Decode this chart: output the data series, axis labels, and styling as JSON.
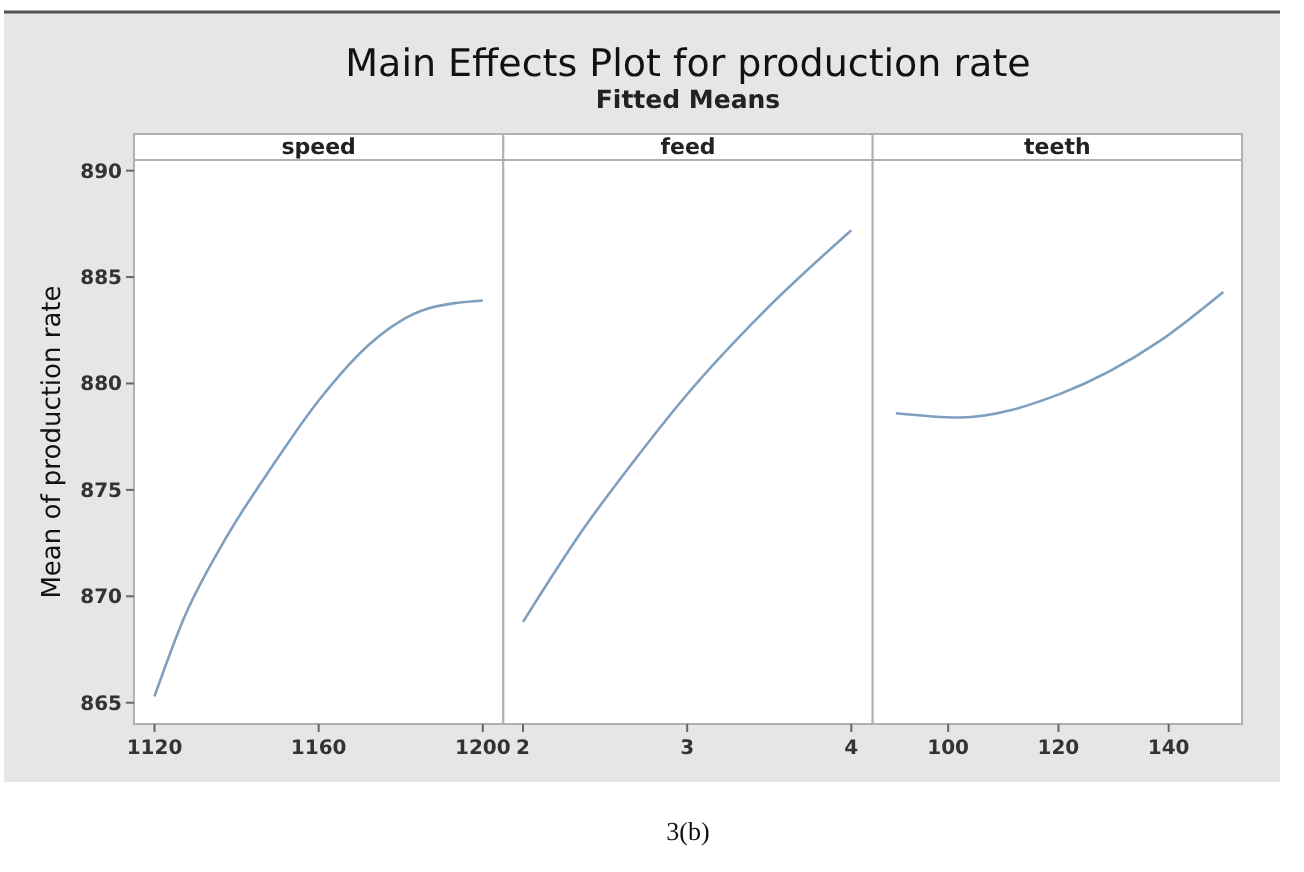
{
  "chart_data": [
    {
      "type": "line",
      "xlabel": "speed",
      "ylabel": "Mean of production rate",
      "x": [
        1120,
        1127,
        1137.6,
        1149,
        1160,
        1173.3,
        1186.3,
        1200
      ],
      "series": [
        {
          "color": "#7f9fbf",
          "values": [
            865.3,
            868.9,
            872.8,
            876.2,
            879.2,
            882.0,
            883.5,
            883.9
          ]
        }
      ],
      "xlim": [
        1115,
        1205
      ],
      "xticks": [
        1120,
        1160,
        1200
      ],
      "ylim": [
        864,
        890.5
      ],
      "yticks": [
        865,
        870,
        875,
        880,
        885,
        890
      ]
    },
    {
      "type": "line",
      "title": "Main Effects Plot for production rate",
      "subtitle": "Fitted Means",
      "annotations": [
        "3(b)"
      ],
      "xlabel": "feed",
      "x": [
        2,
        2.38,
        2.66,
        2.99,
        3.47,
        4
      ],
      "series": [
        {
          "color": "#7f9fbf",
          "values": [
            868.8,
            873.3,
            876.2,
            879.4,
            883.4,
            887.2
          ]
        }
      ],
      "xlim": [
        1.88,
        4.13
      ],
      "xticks": [
        2,
        3,
        4
      ],
      "ylim": [
        864,
        890.5
      ],
      "tick_labels": "x"
    },
    {
      "type": "line",
      "xlabel": "teeth",
      "x": [
        90.5,
        102,
        120.2,
        138.4,
        149.9
      ],
      "series": [
        {
          "color": "#7f9fbf",
          "values": [
            878.6,
            878.4,
            879.5,
            882.0,
            884.3
          ]
        }
      ],
      "xlim": [
        86.3,
        153.3
      ],
      "xticks": [
        100,
        120,
        140
      ],
      "ylim": [
        864,
        890.5
      ],
      "tick_labels": "x"
    }
  ]
}
